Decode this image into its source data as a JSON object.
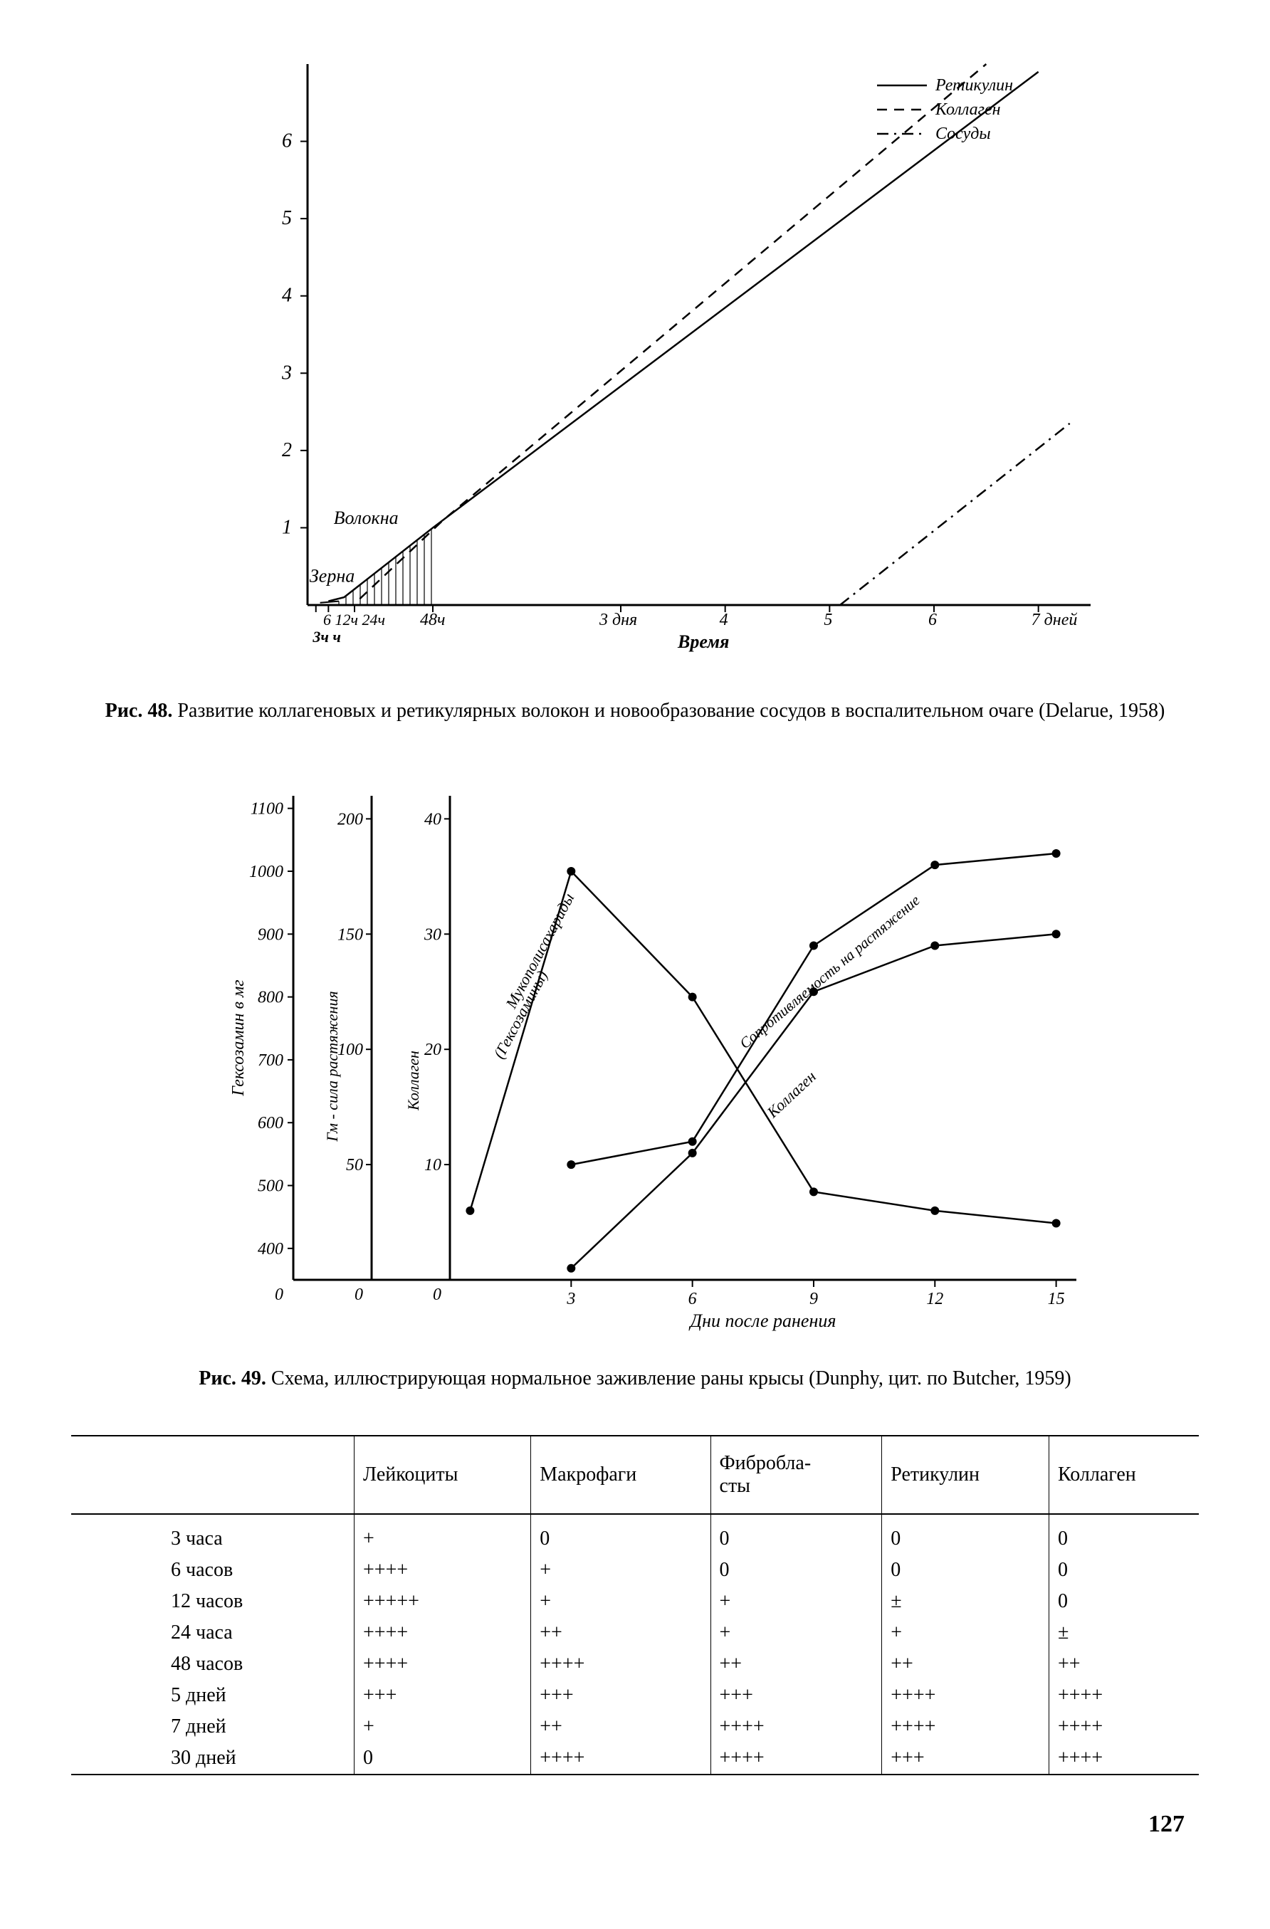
{
  "fig48": {
    "caption_prefix": "Рис. 48.",
    "caption_text": "Развитие коллагеновых и ретикулярных волокон и новообразование сосудов в воспалительном очаге (Delarue, 1958)",
    "type": "line",
    "legend": [
      {
        "label": "Ретикулин",
        "dash": "solid"
      },
      {
        "label": "Коллаген",
        "dash": "dashed"
      },
      {
        "label": "Сосуды",
        "dash": "dashdot"
      }
    ],
    "y_ticks": [
      1,
      2,
      3,
      4,
      5,
      6
    ],
    "x_ticks": [
      "3ч ч",
      "6 12ч 24ч",
      "48ч",
      "3 дня",
      "4",
      "5",
      "6",
      "7 дней"
    ],
    "x_label": "Время",
    "annotations": {
      "volokna": "Волокна",
      "zerna": "Зерна"
    },
    "series_reticulin": [
      {
        "x": 0.2,
        "y": 0.05
      },
      {
        "x": 0.35,
        "y": 0.1
      },
      {
        "x": 1.2,
        "y": 1.0
      },
      {
        "x": 7.0,
        "y": 6.9
      }
    ],
    "series_collagen": [
      {
        "x": 0.5,
        "y": 0.08
      },
      {
        "x": 1.3,
        "y": 1.1
      },
      {
        "x": 6.5,
        "y": 7.0
      }
    ],
    "series_vessels": [
      {
        "x": 5.1,
        "y": 0.0
      },
      {
        "x": 7.3,
        "y": 2.35
      }
    ],
    "hatch_x_range": [
      0.3,
      1.2
    ],
    "axis_color": "#000000",
    "line_color": "#000000",
    "line_width": 2.5,
    "background_color": "#ffffff"
  },
  "fig49": {
    "caption_prefix": "Рис. 49.",
    "caption_text": "Схема, иллюстрирующая нормальное заживление раны крысы (Dunphy, цит. по Butcher, 1959)",
    "type": "line",
    "x_label": "Дни после ранения",
    "x_ticks": [
      0,
      3,
      6,
      9,
      12,
      15
    ],
    "y_axis_1": {
      "label": "Гексозамин в мг",
      "ticks": [
        400,
        500,
        600,
        700,
        800,
        900,
        1000,
        1100
      ]
    },
    "y_axis_2": {
      "label": "Гм - сила растяжения",
      "ticks": [
        50,
        100,
        150,
        200
      ]
    },
    "y_axis_3": {
      "label": "Коллаген",
      "ticks": [
        10,
        20,
        30,
        40
      ]
    },
    "series_labels": {
      "hexosamine": "Мукополисахариды (Гексозамины)",
      "tension": "Сопротивляемость на растяжение",
      "collagen": "Коллаген"
    },
    "series_hexosamine": [
      {
        "x": 0.5,
        "y": 460
      },
      {
        "x": 3,
        "y": 1000
      },
      {
        "x": 6,
        "y": 800
      },
      {
        "x": 9,
        "y": 490
      },
      {
        "x": 12,
        "y": 460
      },
      {
        "x": 15,
        "y": 440
      }
    ],
    "series_tension": [
      {
        "x": 3,
        "y": 10
      },
      {
        "x": 6,
        "y": 12
      },
      {
        "x": 9,
        "y": 29
      },
      {
        "x": 12,
        "y": 36
      },
      {
        "x": 15,
        "y": 37
      }
    ],
    "series_collagen": [
      {
        "x": 3,
        "y": 1
      },
      {
        "x": 6,
        "y": 11
      },
      {
        "x": 9,
        "y": 25
      },
      {
        "x": 12,
        "y": 29
      },
      {
        "x": 15,
        "y": 30
      }
    ],
    "axis_color": "#000000",
    "line_color": "#000000",
    "line_width": 2.5,
    "marker_radius": 6,
    "background_color": "#ffffff"
  },
  "table": {
    "columns": [
      "",
      "Лейкоциты",
      "Макрофаги",
      "Фибробла-\nсты",
      "Ретикулин",
      "Коллаген"
    ],
    "rows": [
      [
        "3 часа",
        "+",
        "0",
        "0",
        "0",
        "0"
      ],
      [
        "6 часов",
        "++++",
        "+",
        "0",
        "0",
        "0"
      ],
      [
        "12 часов",
        "+++++",
        "+",
        "+",
        "±",
        "0"
      ],
      [
        "24 часа",
        "++++",
        "++",
        "+",
        "+",
        "±"
      ],
      [
        "48 часов",
        "++++",
        "++++",
        "++",
        "++",
        "++"
      ],
      [
        "5 дней",
        "+++",
        "+++",
        "+++",
        "++++",
        "++++"
      ],
      [
        "7 дней",
        "+",
        "++",
        "++++",
        "++++",
        "++++"
      ],
      [
        "30 дней",
        "0",
        "++++",
        "++++",
        "+++",
        "++++"
      ]
    ],
    "border_color": "#000000",
    "font_size": 28
  },
  "page_number": "127"
}
